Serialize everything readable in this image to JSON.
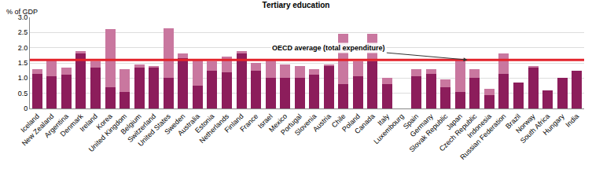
{
  "chart_data": {
    "type": "bar",
    "title": "Tertiary education",
    "ylabel": "% of GDP",
    "stacked": true,
    "grid": true,
    "categories": [
      "Iceland",
      "New Zealand",
      "Argentina",
      "Denmark",
      "Ireland",
      "Korea",
      "United Kingdom",
      "Belgium",
      "Switzerland",
      "United States",
      "Sweden",
      "Australia",
      "Estonia",
      "Netherlands",
      "Finland",
      "France",
      "Israel",
      "Mexico",
      "Portugal",
      "Slovenia",
      "Austria",
      "Chile",
      "Poland",
      "Canada",
      "Italy",
      "Luxembourg",
      "Spain",
      "Germany",
      "Slovak Republic",
      "Japan",
      "Czech Republic",
      "Indonesia",
      "Russian Federation",
      "Brazil",
      "Norway",
      "South Africa",
      "Hungary",
      "India"
    ],
    "series": [
      {
        "color": "#8c1d5b",
        "values": [
          1.15,
          1.05,
          1.1,
          1.8,
          1.35,
          0.7,
          0.55,
          1.35,
          1.35,
          1.0,
          1.65,
          0.75,
          1.25,
          1.2,
          1.8,
          1.25,
          1.0,
          1.0,
          1.0,
          1.1,
          1.4,
          0.8,
          1.05,
          1.55,
          0.8,
          null,
          1.05,
          1.15,
          0.7,
          0.55,
          1.0,
          0.45,
          1.15,
          0.85,
          1.35,
          0.6,
          1.0,
          1.25
        ]
      },
      {
        "color": "#c9779f",
        "values": [
          0.15,
          0.55,
          0.25,
          0.1,
          0.2,
          1.9,
          0.75,
          0.1,
          0.05,
          1.65,
          0.15,
          0.85,
          0.3,
          0.5,
          0.1,
          0.25,
          0.6,
          0.45,
          0.4,
          0.2,
          0.05,
          1.65,
          0.5,
          0.9,
          0.2,
          null,
          0.25,
          0.15,
          0.25,
          1.05,
          0.3,
          0.2,
          0.65,
          null,
          0.05,
          null,
          null,
          null
        ]
      }
    ],
    "reference_line": {
      "value": 1.6,
      "label": "OECD average (total expenditure)",
      "color": "#e3232b"
    },
    "ylim": [
      0,
      3
    ],
    "yticks": [
      0,
      0.5,
      {
        "value": 1,
        "label": "1.0"
      },
      1.5,
      {
        "value": 2,
        "label": "2.0"
      },
      2.5,
      {
        "value": 3,
        "label": "3.0"
      }
    ]
  }
}
